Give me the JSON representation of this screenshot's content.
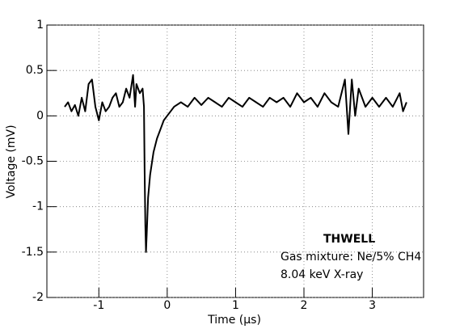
{
  "chart_data": {
    "type": "line",
    "x_label": "Time (µs)",
    "y_label": "Voltage (mV)",
    "annotations": [
      "THWELL",
      "Gas mixture: Ne/5% CH4",
      "8.04 keV X-ray"
    ],
    "xlim": [
      -1.76,
      3.75
    ],
    "ylim": [
      -2,
      1
    ],
    "xticks": [
      -1,
      0,
      1,
      2,
      3
    ],
    "yticks": [
      -2,
      -1.5,
      -1,
      -0.5,
      0,
      0.5,
      1
    ],
    "grid": true,
    "x": [
      -1.5,
      -1.45,
      -1.4,
      -1.35,
      -1.3,
      -1.25,
      -1.2,
      -1.15,
      -1.1,
      -1.05,
      -1.0,
      -0.95,
      -0.9,
      -0.85,
      -0.8,
      -0.75,
      -0.7,
      -0.65,
      -0.6,
      -0.55,
      -0.5,
      -0.47,
      -0.45,
      -0.4,
      -0.36,
      -0.34,
      -0.33,
      -0.32,
      -0.31,
      -0.3,
      -0.28,
      -0.25,
      -0.2,
      -0.15,
      -0.1,
      -0.05,
      0,
      0.05,
      0.1,
      0.2,
      0.3,
      0.4,
      0.5,
      0.6,
      0.7,
      0.8,
      0.9,
      1.0,
      1.1,
      1.2,
      1.3,
      1.4,
      1.5,
      1.6,
      1.7,
      1.8,
      1.9,
      2.0,
      2.1,
      2.2,
      2.3,
      2.4,
      2.5,
      2.6,
      2.65,
      2.7,
      2.75,
      2.8,
      2.9,
      3.0,
      3.1,
      3.2,
      3.3,
      3.4,
      3.45,
      3.5
    ],
    "series": [
      {
        "name": "signal",
        "color": "#000000",
        "values": [
          0.1,
          0.15,
          0.05,
          0.12,
          0.0,
          0.2,
          0.05,
          0.35,
          0.4,
          0.1,
          -0.05,
          0.15,
          0.05,
          0.1,
          0.2,
          0.25,
          0.1,
          0.15,
          0.3,
          0.2,
          0.45,
          0.1,
          0.35,
          0.25,
          0.3,
          0.1,
          -0.6,
          -1.2,
          -1.5,
          -1.3,
          -0.9,
          -0.65,
          -0.4,
          -0.25,
          -0.15,
          -0.05,
          0.0,
          0.05,
          0.1,
          0.15,
          0.1,
          0.2,
          0.12,
          0.2,
          0.15,
          0.1,
          0.2,
          0.15,
          0.1,
          0.2,
          0.15,
          0.1,
          0.2,
          0.15,
          0.2,
          0.1,
          0.25,
          0.15,
          0.2,
          0.1,
          0.25,
          0.15,
          0.1,
          0.4,
          -0.2,
          0.4,
          0.0,
          0.3,
          0.1,
          0.2,
          0.1,
          0.2,
          0.1,
          0.25,
          0.05,
          0.15
        ]
      }
    ]
  }
}
